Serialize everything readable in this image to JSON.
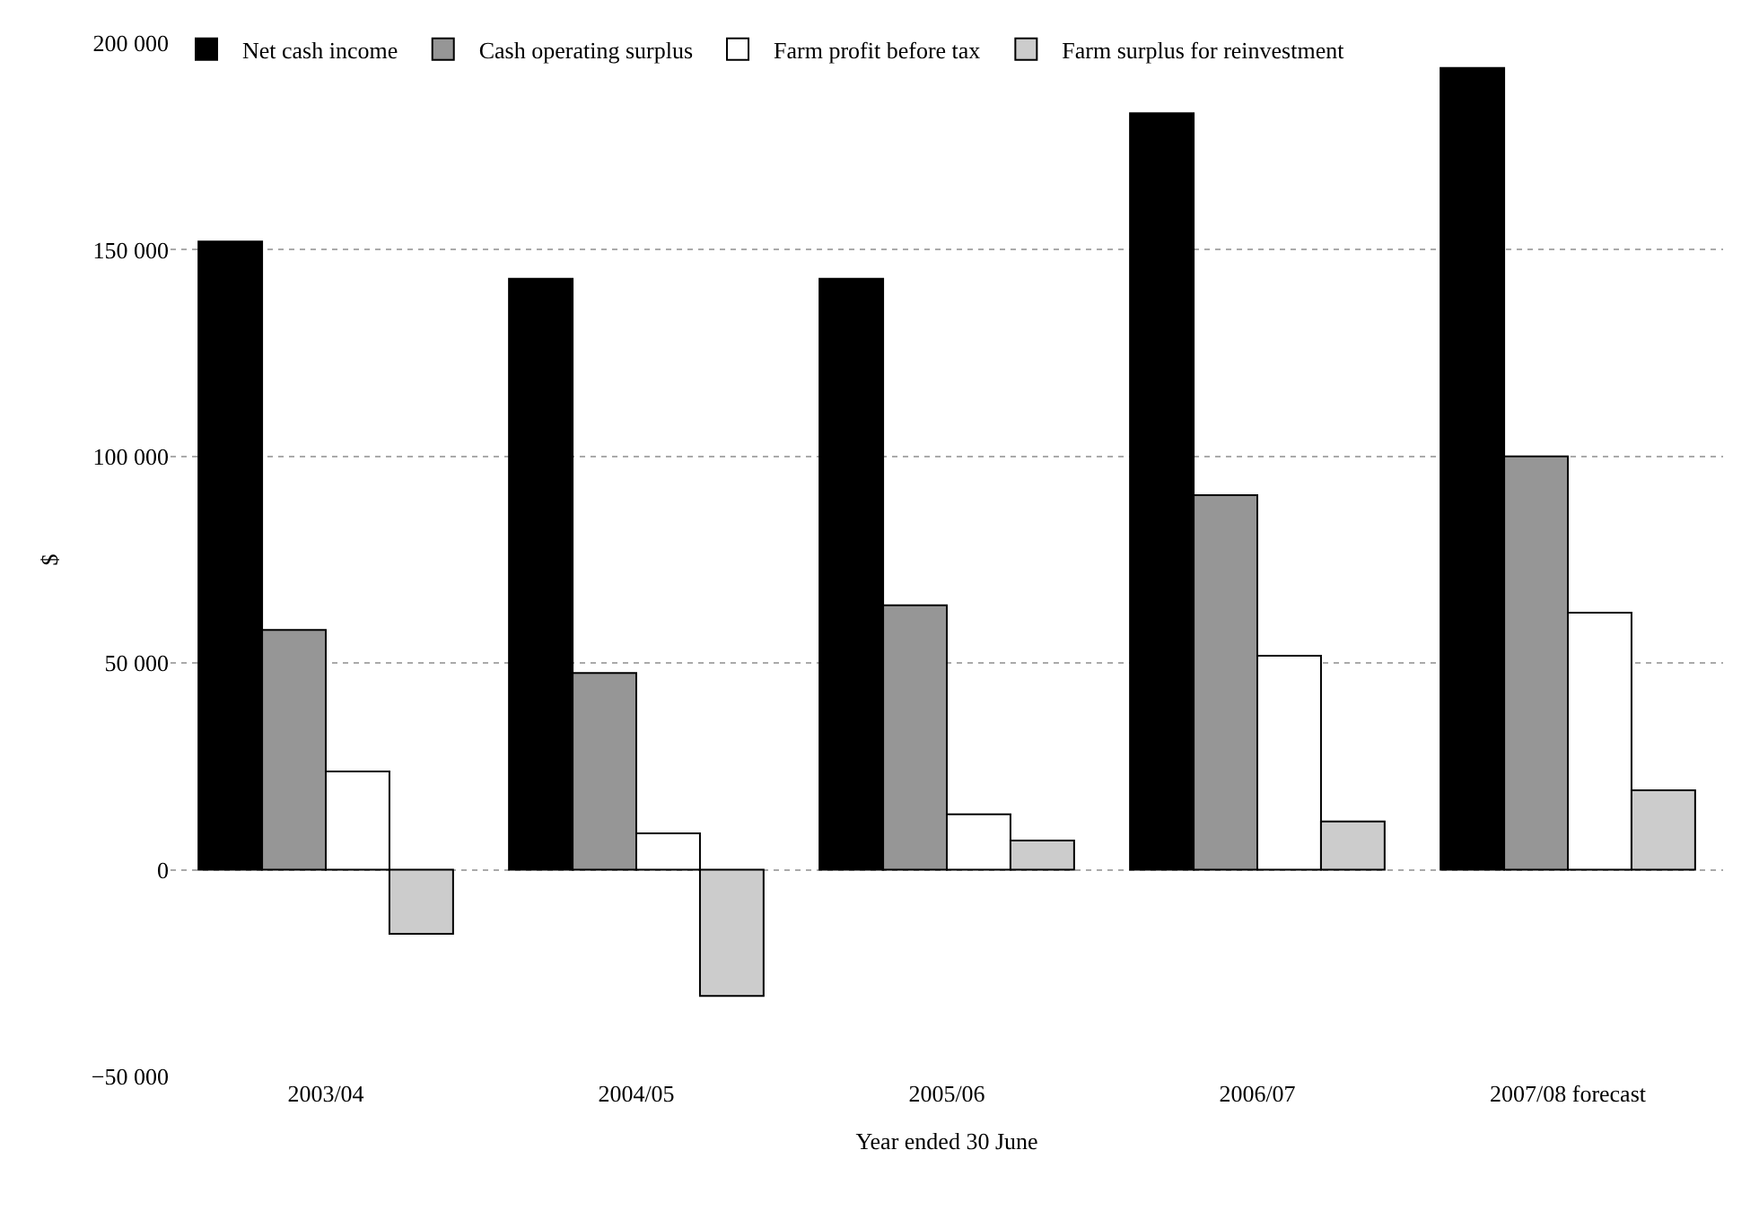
{
  "chart_data": {
    "type": "bar",
    "xlabel": "Year ended 30 June",
    "ylabel": "$",
    "categories": [
      "2003/04",
      "2004/05",
      "2005/06",
      "2006/07",
      "2007/08 forecast"
    ],
    "series": [
      {
        "name": "Net cash income",
        "color": "#000000",
        "values": [
          152000,
          143000,
          143000,
          183000,
          194000
        ]
      },
      {
        "name": "Cash operating surplus",
        "color": "#969696",
        "values": [
          58000,
          47600,
          64000,
          90600,
          100000
        ]
      },
      {
        "name": "Farm profit before tax",
        "color": "#ffffff",
        "values": [
          23800,
          8800,
          13400,
          51800,
          62200
        ]
      },
      {
        "name": "Farm surplus for reinvestment",
        "color": "#cccccc",
        "values": [
          -15500,
          -30500,
          7100,
          11700,
          19200
        ]
      }
    ],
    "ylim": [
      -50000,
      200000
    ],
    "yticks": [
      {
        "value": -50000,
        "label": "−50 000"
      },
      {
        "value": 0,
        "label": "0"
      },
      {
        "value": 50000,
        "label": "50 000"
      },
      {
        "value": 100000,
        "label": "100 000"
      },
      {
        "value": 150000,
        "label": "150 000"
      },
      {
        "value": 200000,
        "label": "200 000"
      }
    ],
    "grid": "y",
    "legend": "top left"
  }
}
